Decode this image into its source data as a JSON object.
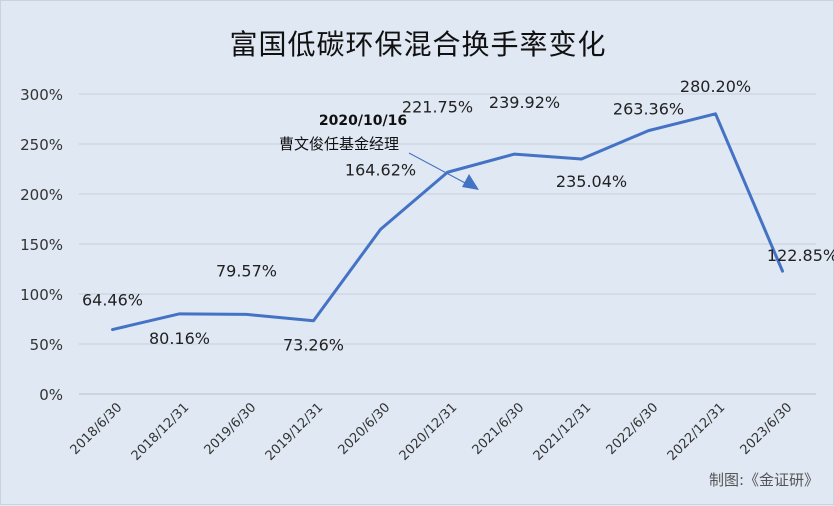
{
  "chart_data": {
    "type": "line",
    "title": "富国低碳环保混合换手率变化",
    "categories": [
      "2018/6/30",
      "2018/12/31",
      "2019/6/30",
      "2019/12/31",
      "2020/6/30",
      "2020/12/31",
      "2021/6/30",
      "2021/12/31",
      "2022/6/30",
      "2022/12/31",
      "2023/6/30"
    ],
    "series": [
      {
        "values": [
          64.46,
          80.16,
          79.57,
          73.26,
          164.62,
          221.75,
          239.92,
          235.04,
          263.36,
          280.2,
          122.85
        ],
        "labels": [
          "64.46%",
          "80.16%",
          "79.57%",
          "73.26%",
          "164.62%",
          "221.75%",
          "239.92%",
          "235.04%",
          "263.36%",
          "280.20%",
          "122.85%"
        ],
        "color": "#4472c4"
      }
    ],
    "y_ticks": [
      "0%",
      "50%",
      "100%",
      "150%",
      "200%",
      "250%",
      "300%"
    ],
    "ylim": [
      0,
      300
    ],
    "grid": true,
    "annotation": {
      "date": "2020/10/16",
      "text": "曹文俊任基金经理"
    }
  },
  "credit": "制图:《金证研》"
}
